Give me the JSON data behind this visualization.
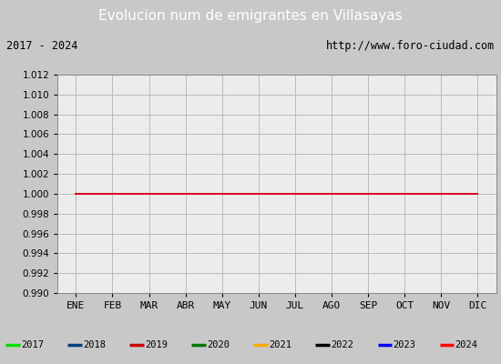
{
  "title": "Evolucion num de emigrantes en Villasayas",
  "subtitle_left": "2017 - 2024",
  "subtitle_right": "http://www.foro-ciudad.com",
  "title_bg_color": "#5b8dd9",
  "title_text_color": "#ffffff",
  "ylim": [
    0.99,
    1.012
  ],
  "ytick_step": 0.002,
  "xlabel_months": [
    "ENE",
    "FEB",
    "MAR",
    "ABR",
    "MAY",
    "JUN",
    "JUL",
    "AGO",
    "SEP",
    "OCT",
    "NOV",
    "DIC"
  ],
  "x_positions": [
    1,
    2,
    3,
    4,
    5,
    6,
    7,
    8,
    9,
    10,
    11,
    12
  ],
  "series": [
    {
      "year": "2017",
      "color": "#00dd00",
      "value": 1.0,
      "draw": false
    },
    {
      "year": "2018",
      "color": "#003f7f",
      "value": 1.0,
      "draw": false
    },
    {
      "year": "2019",
      "color": "#cc0000",
      "value": 1.0,
      "draw": true
    },
    {
      "year": "2020",
      "color": "#007700",
      "value": 1.0,
      "draw": false
    },
    {
      "year": "2021",
      "color": "#ffaa00",
      "value": 1.0,
      "draw": false
    },
    {
      "year": "2022",
      "color": "#000000",
      "value": 1.0,
      "draw": false
    },
    {
      "year": "2023",
      "color": "#0000ff",
      "value": 1.0,
      "draw": true
    },
    {
      "year": "2024",
      "color": "#ff0000",
      "value": 1.0,
      "draw": true
    }
  ],
  "legend_colors": [
    "#00dd00",
    "#003f7f",
    "#cc0000",
    "#007700",
    "#ffaa00",
    "#000000",
    "#0000ff",
    "#ff0000"
  ],
  "legend_labels": [
    "2017",
    "2018",
    "2019",
    "2020",
    "2021",
    "2022",
    "2023",
    "2024"
  ],
  "fig_bg_color": "#c8c8c8",
  "plot_bg_color": "#ececec",
  "grid_color": "#bbbbbb",
  "subtitle_box_bg": "#ffffff",
  "legend_box_bg": "#ffffff"
}
